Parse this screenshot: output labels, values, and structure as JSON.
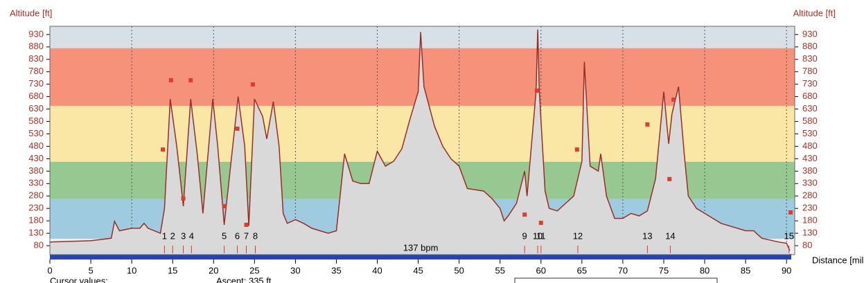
{
  "chart_data": {
    "type": "area",
    "y_title": "Altitude [ft]",
    "x_title": "Distance [miles]",
    "xlim": [
      0,
      91
    ],
    "ylim": [
      44,
      963
    ],
    "xticks": [
      0,
      5,
      10,
      15,
      20,
      25,
      30,
      35,
      40,
      45,
      50,
      55,
      60,
      65,
      70,
      75,
      80,
      85,
      90
    ],
    "yticks": [
      80,
      130,
      180,
      230,
      280,
      330,
      380,
      430,
      480,
      530,
      580,
      630,
      680,
      730,
      780,
      830,
      880,
      930
    ],
    "grid": true,
    "zones": [
      {
        "from": 108,
        "to": 268,
        "color": "#9fcbe0"
      },
      {
        "from": 268,
        "to": 418,
        "color": "#98c892"
      },
      {
        "from": 418,
        "to": 643,
        "color": "#fbe7a5"
      },
      {
        "from": 643,
        "to": 875,
        "color": "#f6917a"
      },
      {
        "from": 875,
        "to": 963,
        "color": "#d7e0e7"
      }
    ],
    "profile": {
      "color": "#9a2d22",
      "fill": "#d9d9d9",
      "x": [
        0,
        5,
        7.5,
        7.9,
        8.5,
        10,
        11,
        11.5,
        12,
        13.5,
        14,
        14.7,
        15.5,
        16.3,
        17.2,
        18,
        18.7,
        19.9,
        20.5,
        21.3,
        23,
        23.8,
        24.3,
        25,
        26,
        26.5,
        27.3,
        28,
        28.5,
        29,
        30,
        31,
        32,
        34,
        35,
        36,
        37,
        38,
        39,
        40,
        41,
        42,
        43,
        44,
        45,
        45.3,
        45.7,
        47,
        48,
        49,
        50,
        51,
        53,
        54,
        55,
        55.5,
        56,
        57,
        58,
        58.3,
        59.4,
        59.6,
        59.8,
        60.5,
        61,
        62,
        63,
        64,
        65,
        65.3,
        66,
        67,
        67.3,
        68,
        69,
        70,
        71,
        72,
        73,
        74,
        75,
        75.6,
        76,
        76.8,
        77.5,
        78,
        79,
        80,
        82,
        85,
        86,
        86.4,
        87,
        89,
        90,
        90.4
      ],
      "values": [
        95,
        100,
        110,
        178,
        140,
        150,
        150,
        170,
        150,
        130,
        230,
        670,
        480,
        239,
        670,
        450,
        210,
        670,
        480,
        164,
        680,
        480,
        160,
        670,
        600,
        510,
        660,
        480,
        210,
        170,
        185,
        170,
        150,
        130,
        140,
        450,
        340,
        330,
        330,
        460,
        400,
        420,
        470,
        590,
        700,
        940,
        720,
        560,
        480,
        430,
        400,
        310,
        300,
        270,
        230,
        180,
        200,
        250,
        380,
        280,
        700,
        950,
        700,
        300,
        230,
        220,
        250,
        280,
        420,
        820,
        400,
        380,
        450,
        280,
        190,
        190,
        210,
        200,
        220,
        350,
        700,
        490,
        610,
        720,
        450,
        280,
        230,
        210,
        170,
        140,
        140,
        127,
        110,
        95,
        90,
        60
      ]
    },
    "markers": {
      "color": "#e03a32",
      "x": [
        13.8,
        14.8,
        16.3,
        17.2,
        21.3,
        22.9,
        24.0,
        24.8,
        58.0,
        59.5,
        60.0,
        64.4,
        73.0,
        75.7,
        76.2,
        90.5
      ],
      "values": [
        467,
        746,
        270,
        746,
        239,
        551,
        164,
        729,
        205,
        704,
        172,
        467,
        568,
        348,
        668,
        214
      ]
    },
    "laps": {
      "labels": [
        "1",
        "2",
        "3",
        "4",
        "5",
        "6",
        "7",
        "8",
        "9",
        "10",
        "11",
        "12",
        "13",
        "14",
        "15"
      ],
      "x": [
        14.0,
        15.0,
        16.3,
        17.3,
        21.3,
        22.9,
        24.0,
        25.1,
        58.0,
        59.6,
        60.0,
        64.5,
        73.0,
        75.8,
        90.3
      ]
    },
    "average_label": {
      "text": "137 bpm",
      "x": 45.3
    },
    "footer": {
      "cursor": "Cursor values:",
      "ascent": "Ascent: 335 ft"
    }
  }
}
